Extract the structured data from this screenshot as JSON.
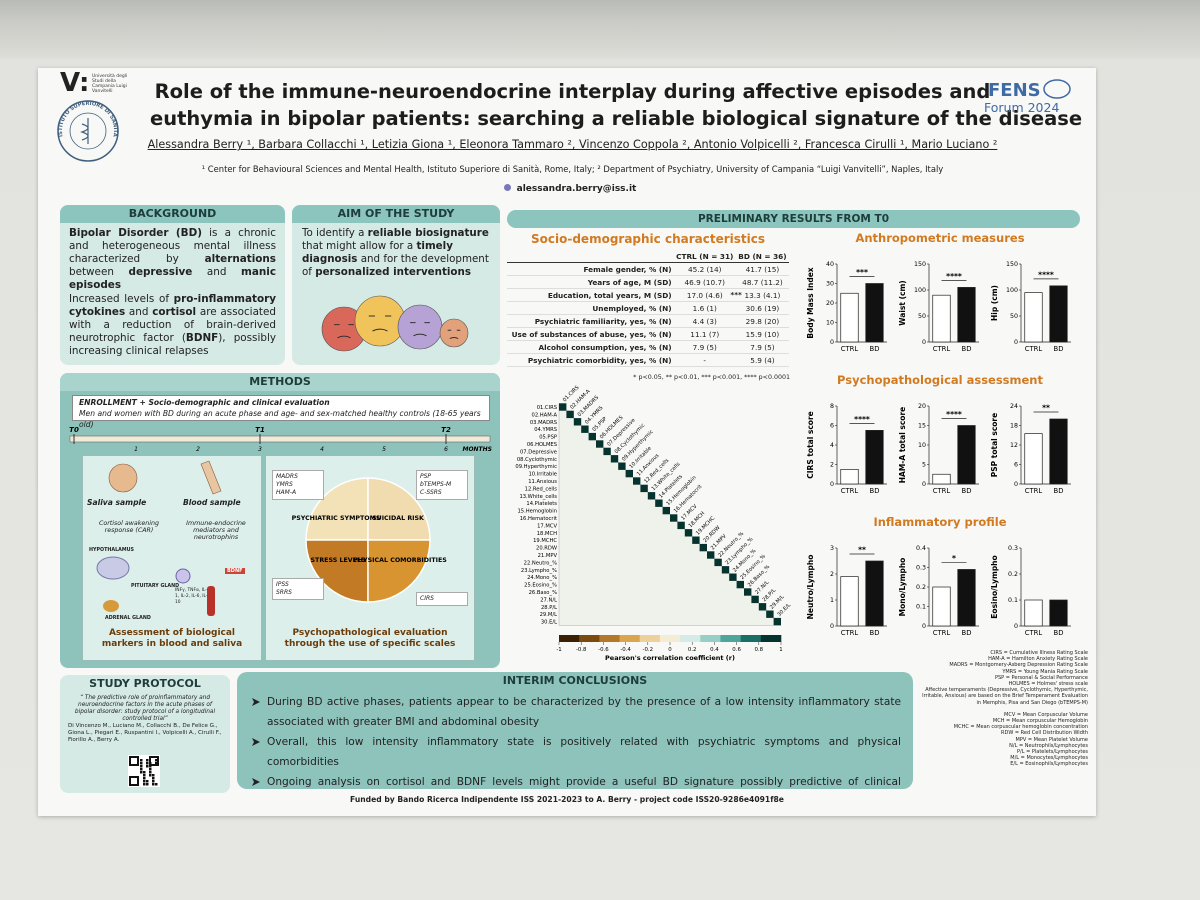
{
  "header": {
    "university_mark": "V:",
    "university": "Università degli Studi della Campania Luigi Vanvitelli",
    "institute": "ISTITUTO SUPERIORE DI SANITÀ",
    "title": [
      "Role of the immune-neuroendocrine interplay during affective episodes and",
      "euthymia in bipolar patients: searching a reliable biological signature of the disease"
    ],
    "authors": "Alessandra Berry ¹, Barbara Collacchi ¹, Letizia Giona ¹, Eleonora Tammaro ², Vincenzo Coppola ², Antonio Volpicelli ², Francesca Cirulli ¹, Mario Luciano ²",
    "affiliations": "¹ Center for Behavioural Sciences and Mental Health, Istituto Superiore di Sanità, Rome, Italy; ² Department of Psychiatry, University of Campania “Luigi Vanvitelli”, Naples, Italy",
    "email": "alessandra.berry@iss.it",
    "congress": [
      "FENS",
      "Forum 2024"
    ]
  },
  "background": {
    "title": "BACKGROUND",
    "paragraphs": [
      [
        {
          "bold": "Bipolar Disorder (BD)"
        },
        " is a chronic and heterogeneous mental illness characterized by ",
        {
          "bold": "alternations"
        },
        " between ",
        {
          "bold": "depressive"
        },
        " and ",
        {
          "bold": "manic episodes"
        }
      ],
      [
        "Increased levels of ",
        {
          "bold": "pro-inflammatory cytokines"
        },
        " and ",
        {
          "bold": "cortisol"
        },
        " are associated with a reduction of brain-derived neurotrophic factor (",
        {
          "bold": "BDNF"
        },
        "), possibly increasing clinical relapses"
      ]
    ]
  },
  "aim": {
    "title": "AIM OF THE STUDY",
    "paragraph": [
      "To identify a ",
      {
        "bold": "reliable biosignature"
      },
      " that might allow for a ",
      {
        "bold": "timely diagnosis"
      },
      " and for the development of ",
      {
        "bold": "personalized interventions"
      }
    ]
  },
  "methods": {
    "title": "METHODS",
    "enrollment_title": "ENROLLMENT + Socio-demographic and clinical evaluation",
    "enrollment_text": "Men and women with BD during an acute phase and age- and sex-matched healthy controls (18-65 years old)",
    "timepoints": [
      {
        "label": "T0",
        "month": 0
      },
      {
        "label": "T1",
        "month": 3
      },
      {
        "label": "T2",
        "month": 6
      }
    ],
    "months": [
      1,
      2,
      3,
      4,
      5,
      6
    ],
    "months_label": "MONTHS",
    "saliva": "Saliva sample",
    "blood": "Blood sample",
    "saliva_text": "Cortisol awakening response (CAR)",
    "blood_text": "Immune-endocrine mediators and neurotrophins",
    "glands": [
      "HYPOTHALAMUS",
      "PITUITARY GLAND",
      "ADRENAL GLAND"
    ],
    "bdnf": "BDNF",
    "cytokines": "INFγ, TNFα, IL-1, IL-2, IL-6, IL-10",
    "left_caption": "Assessment of biological markers in blood and saliva",
    "quadrants": [
      "PSYCHIATRIC SYMPTOMS",
      "SUICIDAL RISK",
      "STRESS LEVELS",
      "PHYSICAL COMORBIDITIES"
    ],
    "scales": [
      [
        "MADRS",
        "YMRS",
        "HAM-A"
      ],
      [
        "PSP",
        "bTEMPS-M",
        "C-SSRS"
      ],
      [
        "IPSS",
        "SRRS"
      ],
      [
        "CIRS"
      ]
    ],
    "right_caption": "Psychopathological evaluation through the use of specific scales"
  },
  "protocol": {
    "title": "STUDY PROTOCOL",
    "quote": "“ The predictive role of proinflammatory and neuroendocrine factors in the acute phases of bipolar disorder: study protocol of a longitudinal controlled trial”",
    "authors": "Di Vincenzo M., Luciano M., Collacchi B., De Felice G., Giona L., Piegari E., Ruspantini I., Volpicelli A., Cirulli F., Fiorillo A., Berry A."
  },
  "conclusions": {
    "title": "INTERIM CONCLUSIONS",
    "bullets": [
      "During BD active phases, patients appear to be characterized by the presence of a low intensity inflammatory state associated with greater BMI and abdominal obesity",
      "Overall, this low intensity inflammatory state is positively related with psychiatric symptoms and physical comorbidities",
      "Ongoing analysis on cortisol and BDNF levels might provide a useful BD signature possibly predictive of clinical relapses"
    ]
  },
  "results": {
    "title": "PRELIMINARY RESULTS FROM T0",
    "table": {
      "title": "Socio-demographic characteristics",
      "columns": [
        "CTRL (N = 31)",
        "BD (N = 36)"
      ],
      "rows": [
        {
          "label": "Female gender, % (N)",
          "ctrl": "45.2 (14)",
          "bd": "41.7 (15)"
        },
        {
          "label": "Years of age, M (SD)",
          "ctrl": "46.9 (10.7)",
          "bd": "48.7 (11.2)"
        },
        {
          "label": "Education, total years, M (SD)",
          "ctrl": "17.0 (4.6)",
          "sig": "***",
          "bd": "13.3 (4.1)"
        },
        {
          "label": "Unemployed, % (N)",
          "ctrl": "1.6 (1)",
          "bd": "30.6 (19)"
        },
        {
          "label": "Psychiatric familiarity, yes, % (N)",
          "ctrl": "4.4 (3)",
          "bd": "29.8 (20)"
        },
        {
          "label": "Use of substances of abuse, yes, % (N)",
          "ctrl": "11.1 (7)",
          "bd": "15.9 (10)"
        },
        {
          "label": "Alcohol consumption, yes, % (N)",
          "ctrl": "7.9 (5)",
          "bd": "7.9 (5)"
        },
        {
          "label": "Psychiatric comorbidity, yes, % (N)",
          "ctrl": "-",
          "bd": "5.9 (4)"
        }
      ],
      "footnote": "* p<0.05, ** p<0.01, *** p<0.001, **** p<0.0001"
    },
    "heatmap": {
      "variables": [
        "01.CIRS",
        "02.HAM-A",
        "03.MADRS",
        "04.YMRS",
        "05.PSP",
        "06.HOLMES",
        "07.Depressive",
        "08.Cyclothymic",
        "09.Hyperthymic",
        "10.Irritable",
        "11.Anxious",
        "12.Red_cells",
        "13.White_cells",
        "14.Platelets",
        "15.Hemoglobin",
        "16.Hematocrit",
        "17.MCV",
        "18.MCH",
        "19.MCHC",
        "20.RDW",
        "21.MPV",
        "22.Neutro_%",
        "23.Lympho_%",
        "24.Mono_%",
        "25.Eosino_%",
        "26.Baso_%",
        "27.N/L",
        "28.P/L",
        "29.M/L",
        "30.E/L"
      ],
      "colorbar_ticks": [
        -1,
        -0.8,
        -0.6,
        -0.4,
        -0.2,
        0,
        0.2,
        0.4,
        0.6,
        0.8,
        1
      ],
      "colorbar_colors": [
        "#3a1f05",
        "#7a4a10",
        "#b3782a",
        "#d9a64e",
        "#ecd29a",
        "#f5ecd6",
        "#d5ebe7",
        "#97cfc7",
        "#4ea69b",
        "#1b6d65",
        "#07332f"
      ],
      "colorbar_label": "Pearson's correlation coefficient (r)"
    },
    "categories": [
      "CTRL",
      "BD"
    ],
    "colors": [
      "#ffffff",
      "#111111"
    ],
    "groups": [
      {
        "title": "Anthropometric measures",
        "charts": [
          {
            "ylabel": "Body Mass Index",
            "ylim": [
              0,
              40
            ],
            "yticks": [
              0,
              10,
              20,
              30,
              40
            ],
            "values": [
              25,
              30
            ],
            "sig": "***"
          },
          {
            "ylabel": "Waist (cm)",
            "ylim": [
              0,
              150
            ],
            "yticks": [
              0,
              50,
              100,
              150
            ],
            "values": [
              90,
              105
            ],
            "sig": "****"
          },
          {
            "ylabel": "Hip (cm)",
            "ylim": [
              0,
              150
            ],
            "yticks": [
              0,
              50,
              100,
              150
            ],
            "values": [
              95,
              108
            ],
            "sig": "****"
          }
        ]
      },
      {
        "title": "Psychopathological assessment",
        "charts": [
          {
            "ylabel": "CIRS total score",
            "ylim": [
              0,
              8
            ],
            "yticks": [
              0,
              2,
              4,
              6,
              8
            ],
            "values": [
              1.5,
              5.5
            ],
            "sig": "****"
          },
          {
            "ylabel": "HAM-A total score",
            "ylim": [
              0,
              20
            ],
            "yticks": [
              0,
              5,
              10,
              15,
              20
            ],
            "values": [
              2.5,
              15
            ],
            "sig": "****"
          },
          {
            "ylabel": "PSP total score",
            "ylim": [
              0,
              24
            ],
            "yticks": [
              0,
              6,
              12,
              18,
              24
            ],
            "values": [
              15.5,
              20
            ],
            "sig": "**"
          }
        ]
      },
      {
        "title": "Inflammatory profile",
        "charts": [
          {
            "ylabel": "Neutro/Lympho",
            "ylim": [
              0,
              3
            ],
            "yticks": [
              0,
              1,
              2,
              3
            ],
            "values": [
              1.9,
              2.5
            ],
            "sig": "**"
          },
          {
            "ylabel": "Mono/Lympho",
            "ylim": [
              0,
              0.4
            ],
            "yticks": [
              0,
              0.1,
              0.2,
              0.3,
              0.4
            ],
            "values": [
              0.2,
              0.29
            ],
            "sig": "*"
          },
          {
            "ylabel": "Eosino/Lympho",
            "ylim": [
              0,
              0.3
            ],
            "yticks": [
              0,
              0.1,
              0.2,
              0.3
            ],
            "values": [
              0.1,
              0.1
            ]
          }
        ]
      }
    ]
  },
  "abbreviations": [
    [
      "CIRS = Cumulative Illness Rating Scale",
      "HAM-A = Hamilton Anxiety Rating Scale",
      "MADRS = Montgomery-Asberg Depression Rating Scale",
      "YMRS = Young Mania Rating Scale",
      "PSP = Personal & Social Performance",
      "HOLMES = Holmes' stress scale",
      "Affective temperaments (Depressive, Cyclothymic, Hyperthymic, Irritable, Anxious) are based on the Brief Temperament Evaluation in Memphis, Pisa and San Diego (bTEMPS-M)"
    ],
    [
      "MCV = Mean Corpuscular Volume",
      "MCH = Mean corpuscular Hemoglobin",
      "MCHC = Mean corpuscular hemoglobin concentration",
      "RDW = Red Cell Distribution Width",
      "MPV = Mean Platelet Volume",
      "N/L = Neutrophils/Lymphocytes",
      "P/L = Platelets/Lymphocytes",
      "M/L = Monocytes/Lymphocytes",
      "E/L = Eosinophils/Lymphocytes"
    ]
  ],
  "funding": "Funded by Bando Ricerca Indipendente ISS 2021-2023 to A. Berry - project code ISS20-9286e4091f8e"
}
